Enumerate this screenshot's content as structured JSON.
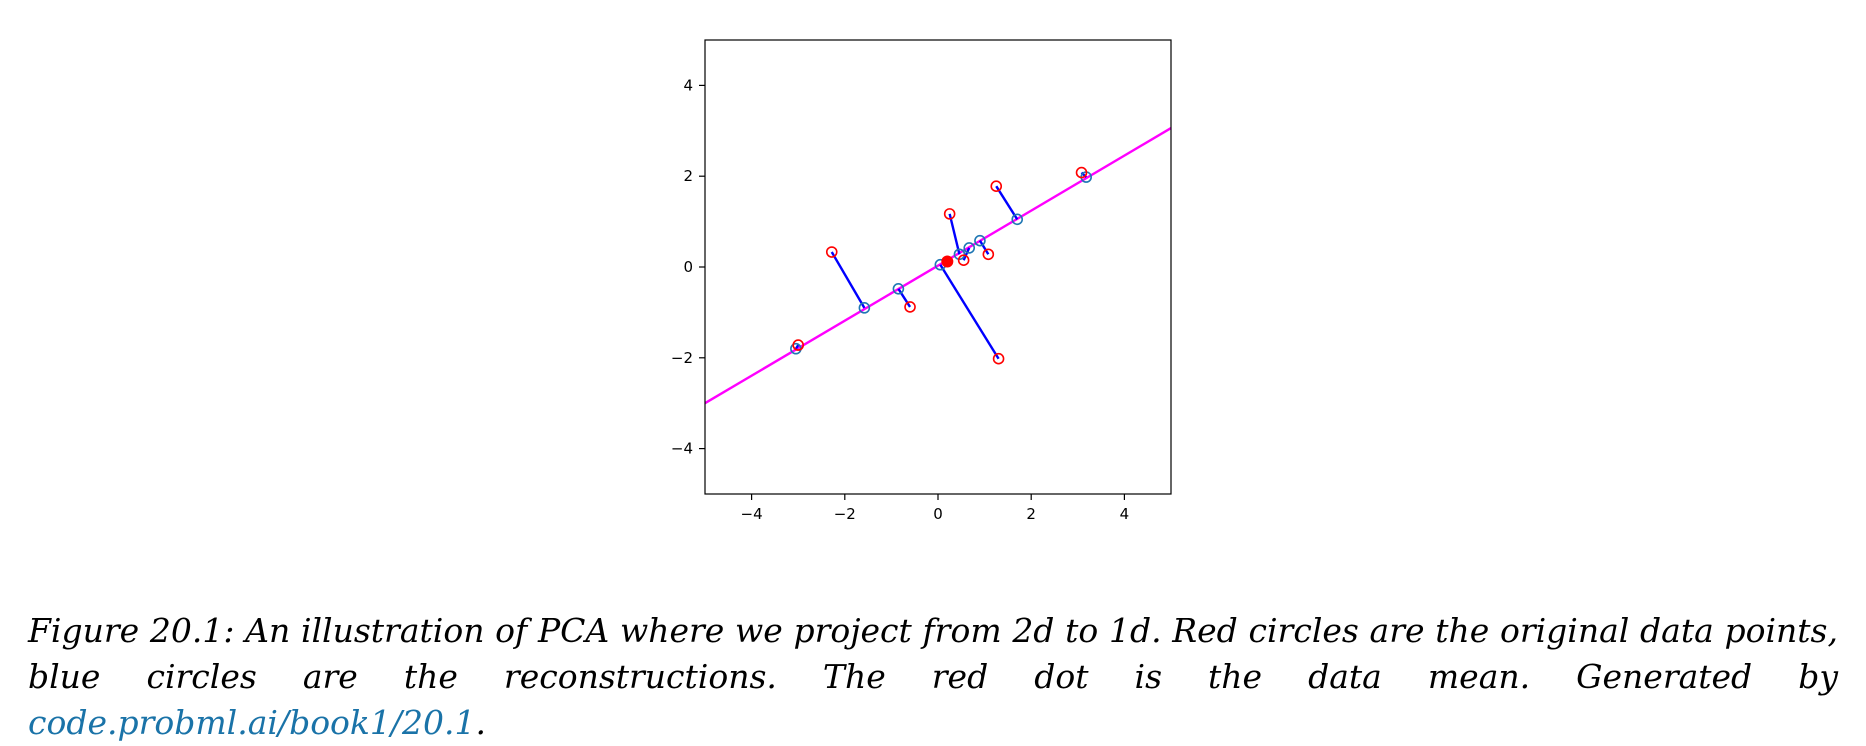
{
  "chart_data": {
    "type": "scatter",
    "title": "",
    "xlabel": "",
    "ylabel": "",
    "xlim": [
      -5,
      5
    ],
    "ylim": [
      -5,
      5
    ],
    "xticks": [
      -4,
      -2,
      0,
      2,
      4
    ],
    "yticks": [
      -4,
      -2,
      0,
      2,
      4
    ],
    "grid": false,
    "line": {
      "x": [
        -5,
        5
      ],
      "y": [
        -3.0,
        3.06
      ],
      "color": "#ff00ff"
    },
    "mean": {
      "x": 0.2,
      "y": 0.12,
      "color": "#ff0000"
    },
    "original_points": [
      {
        "x": -3.0,
        "y": -1.72
      },
      {
        "x": -2.28,
        "y": 0.33
      },
      {
        "x": -0.6,
        "y": -0.88
      },
      {
        "x": 0.25,
        "y": 1.17
      },
      {
        "x": 0.55,
        "y": 0.15
      },
      {
        "x": 1.08,
        "y": 0.28
      },
      {
        "x": 1.25,
        "y": 1.78
      },
      {
        "x": 1.3,
        "y": -2.02
      },
      {
        "x": 3.08,
        "y": 2.08
      }
    ],
    "reconstructions": [
      {
        "x": -3.05,
        "y": -1.8
      },
      {
        "x": -1.58,
        "y": -0.9
      },
      {
        "x": -0.85,
        "y": -0.48
      },
      {
        "x": 0.46,
        "y": 0.28
      },
      {
        "x": 0.67,
        "y": 0.42
      },
      {
        "x": 0.9,
        "y": 0.58
      },
      {
        "x": 1.7,
        "y": 1.05
      },
      {
        "x": 0.05,
        "y": 0.05
      },
      {
        "x": 3.18,
        "y": 1.98
      }
    ],
    "colors": {
      "original": "#ff0000",
      "reconstruction": "#1f77b4",
      "connector": "#0000ff"
    }
  },
  "caption": {
    "text": "Figure 20.1: An illustration of PCA where we project from 2d to 1d. Red circles are the original data points, blue circles are the reconstructions. The red dot is the data mean. Generated by ",
    "link": "code.probml.ai/book1/20.1",
    "end": "."
  }
}
